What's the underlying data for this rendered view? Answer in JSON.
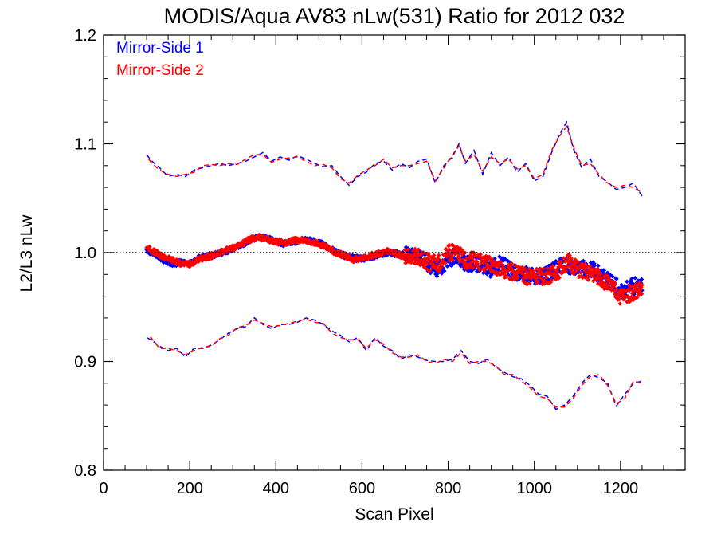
{
  "chart_data": {
    "type": "scatter",
    "title": "MODIS/Aqua AV83 nLw(531) Ratio for 2012 032",
    "xlabel": "Scan Pixel",
    "ylabel": "L2/L3 nLw",
    "xlim": [
      0,
      1350
    ],
    "ylim": [
      0.8,
      1.2
    ],
    "x_ticks": [
      0,
      200,
      400,
      600,
      800,
      1000,
      1200
    ],
    "x_tick_labels": [
      "0",
      "200",
      "400",
      "600",
      "800",
      "1000",
      "1200"
    ],
    "y_ticks": [
      0.8,
      0.9,
      1.0,
      1.1,
      1.2
    ],
    "y_tick_labels": [
      "0.8",
      "0.9",
      "1.0",
      "1.1",
      "1.2"
    ],
    "reference_line": 1.0,
    "legend_position": "top-left",
    "colors": {
      "ms1": "#0000ff",
      "ms2": "#ff0000",
      "reference": "#000000"
    },
    "series": [
      {
        "name": "Mirror-Side 1",
        "color": "#0000ff",
        "mean": {
          "x": [
            100,
            120,
            140,
            160,
            180,
            200,
            220,
            240,
            260,
            280,
            300,
            320,
            340,
            360,
            380,
            400,
            420,
            440,
            460,
            480,
            500,
            520,
            540,
            560,
            580,
            600,
            620,
            640,
            660,
            680,
            700,
            720,
            740,
            760,
            780,
            800,
            820,
            840,
            860,
            880,
            900,
            920,
            940,
            960,
            980,
            1000,
            1020,
            1040,
            1060,
            1080,
            1100,
            1120,
            1140,
            1160,
            1180,
            1200,
            1220,
            1240,
            1250
          ],
          "y": [
            1.003,
            0.998,
            0.993,
            0.99,
            0.991,
            0.99,
            0.995,
            0.997,
            0.998,
            1.001,
            1.003,
            1.007,
            1.012,
            1.015,
            1.013,
            1.01,
            1.008,
            1.01,
            1.012,
            1.011,
            1.009,
            1.005,
            1.001,
            0.997,
            0.995,
            0.994,
            0.996,
            0.998,
            1.0,
            0.999,
            0.998,
            0.996,
            0.995,
            0.987,
            0.985,
            0.995,
            0.997,
            0.99,
            0.99,
            0.988,
            0.985,
            0.99,
            0.985,
            0.982,
            0.98,
            0.978,
            0.978,
            0.982,
            0.988,
            0.988,
            0.987,
            0.986,
            0.983,
            0.978,
            0.973,
            0.965,
            0.968,
            0.97,
            0.968
          ]
        },
        "upper": {
          "x": [
            100,
            110,
            130,
            150,
            170,
            190,
            210,
            230,
            250,
            270,
            290,
            310,
            330,
            350,
            370,
            390,
            410,
            430,
            450,
            470,
            490,
            510,
            530,
            550,
            570,
            590,
            610,
            630,
            650,
            670,
            690,
            710,
            730,
            750,
            770,
            790,
            810,
            825,
            840,
            860,
            880,
            900,
            920,
            940,
            960,
            980,
            1000,
            1020,
            1040,
            1060,
            1075,
            1090,
            1110,
            1130,
            1150,
            1170,
            1190,
            1210,
            1230,
            1250
          ],
          "y": [
            1.09,
            1.085,
            1.078,
            1.07,
            1.072,
            1.07,
            1.076,
            1.078,
            1.08,
            1.082,
            1.08,
            1.082,
            1.084,
            1.088,
            1.092,
            1.084,
            1.088,
            1.085,
            1.089,
            1.086,
            1.082,
            1.079,
            1.08,
            1.07,
            1.062,
            1.07,
            1.074,
            1.082,
            1.084,
            1.076,
            1.082,
            1.078,
            1.084,
            1.086,
            1.064,
            1.08,
            1.088,
            1.1,
            1.082,
            1.094,
            1.072,
            1.092,
            1.08,
            1.088,
            1.074,
            1.082,
            1.066,
            1.07,
            1.092,
            1.11,
            1.12,
            1.096,
            1.078,
            1.086,
            1.07,
            1.065,
            1.058,
            1.06,
            1.064,
            1.052
          ]
        },
        "lower": {
          "x": [
            100,
            110,
            130,
            150,
            170,
            190,
            210,
            230,
            250,
            270,
            290,
            310,
            330,
            350,
            370,
            390,
            410,
            430,
            450,
            470,
            490,
            510,
            530,
            550,
            570,
            590,
            610,
            630,
            650,
            670,
            690,
            710,
            730,
            750,
            770,
            790,
            810,
            830,
            850,
            870,
            890,
            910,
            930,
            950,
            970,
            990,
            1010,
            1030,
            1050,
            1070,
            1090,
            1110,
            1130,
            1150,
            1170,
            1190,
            1210,
            1230,
            1250
          ],
          "y": [
            0.922,
            0.92,
            0.914,
            0.91,
            0.912,
            0.904,
            0.912,
            0.912,
            0.915,
            0.92,
            0.926,
            0.93,
            0.932,
            0.94,
            0.934,
            0.93,
            0.934,
            0.934,
            0.936,
            0.94,
            0.938,
            0.934,
            0.928,
            0.924,
            0.918,
            0.922,
            0.91,
            0.922,
            0.914,
            0.91,
            0.902,
            0.906,
            0.904,
            0.901,
            0.9,
            0.9,
            0.902,
            0.91,
            0.9,
            0.898,
            0.902,
            0.895,
            0.89,
            0.886,
            0.884,
            0.878,
            0.87,
            0.868,
            0.856,
            0.86,
            0.868,
            0.88,
            0.888,
            0.885,
            0.88,
            0.859,
            0.87,
            0.88,
            0.882
          ]
        }
      },
      {
        "name": "Mirror-Side 2",
        "color": "#ff0000",
        "mean": {
          "x": [
            100,
            120,
            140,
            160,
            180,
            200,
            220,
            240,
            260,
            280,
            300,
            320,
            340,
            360,
            380,
            400,
            420,
            440,
            460,
            480,
            500,
            520,
            540,
            560,
            580,
            600,
            620,
            640,
            660,
            680,
            700,
            720,
            740,
            760,
            780,
            800,
            820,
            840,
            860,
            880,
            900,
            920,
            940,
            960,
            980,
            1000,
            1020,
            1040,
            1060,
            1080,
            1100,
            1120,
            1140,
            1160,
            1180,
            1200,
            1220,
            1240,
            1250
          ],
          "y": [
            1.005,
            1.0,
            0.996,
            0.993,
            0.99,
            0.989,
            0.994,
            0.996,
            0.998,
            1.002,
            1.004,
            1.008,
            1.012,
            1.014,
            1.012,
            1.01,
            1.009,
            1.011,
            1.012,
            1.01,
            1.008,
            1.004,
            1.0,
            0.997,
            0.994,
            0.995,
            0.997,
            0.999,
            1.001,
            0.999,
            0.996,
            0.997,
            0.994,
            0.99,
            0.99,
            1.0,
            1.0,
            0.992,
            0.993,
            0.99,
            0.99,
            0.985,
            0.983,
            0.982,
            0.978,
            0.98,
            0.978,
            0.98,
            0.985,
            0.992,
            0.985,
            0.982,
            0.98,
            0.975,
            0.968,
            0.96,
            0.962,
            0.966,
            0.966
          ]
        },
        "upper": {
          "x": [
            100,
            110,
            130,
            150,
            170,
            190,
            210,
            230,
            250,
            270,
            290,
            310,
            330,
            350,
            370,
            390,
            410,
            430,
            450,
            470,
            490,
            510,
            530,
            550,
            570,
            590,
            610,
            630,
            650,
            670,
            690,
            710,
            730,
            750,
            770,
            790,
            810,
            825,
            840,
            860,
            880,
            900,
            920,
            940,
            960,
            980,
            1000,
            1020,
            1040,
            1060,
            1075,
            1090,
            1110,
            1130,
            1150,
            1170,
            1190,
            1210,
            1230,
            1250
          ],
          "y": [
            1.089,
            1.083,
            1.076,
            1.072,
            1.07,
            1.072,
            1.074,
            1.08,
            1.081,
            1.08,
            1.082,
            1.081,
            1.086,
            1.09,
            1.09,
            1.083,
            1.086,
            1.087,
            1.088,
            1.084,
            1.08,
            1.081,
            1.078,
            1.068,
            1.064,
            1.071,
            1.076,
            1.08,
            1.086,
            1.078,
            1.08,
            1.08,
            1.082,
            1.084,
            1.066,
            1.078,
            1.09,
            1.098,
            1.084,
            1.09,
            1.075,
            1.088,
            1.082,
            1.086,
            1.077,
            1.08,
            1.068,
            1.072,
            1.094,
            1.108,
            1.116,
            1.098,
            1.08,
            1.082,
            1.072,
            1.064,
            1.06,
            1.062,
            1.06,
            1.055
          ]
        },
        "lower": {
          "x": [
            100,
            110,
            130,
            150,
            170,
            190,
            210,
            230,
            250,
            270,
            290,
            310,
            330,
            350,
            370,
            390,
            410,
            430,
            450,
            470,
            490,
            510,
            530,
            550,
            570,
            590,
            610,
            630,
            650,
            670,
            690,
            710,
            730,
            750,
            770,
            790,
            810,
            830,
            850,
            870,
            890,
            910,
            930,
            950,
            970,
            990,
            1010,
            1030,
            1050,
            1070,
            1090,
            1110,
            1130,
            1150,
            1170,
            1190,
            1210,
            1230,
            1250
          ],
          "y": [
            0.92,
            0.922,
            0.912,
            0.912,
            0.91,
            0.906,
            0.91,
            0.913,
            0.914,
            0.921,
            0.924,
            0.931,
            0.933,
            0.938,
            0.935,
            0.932,
            0.933,
            0.935,
            0.937,
            0.939,
            0.936,
            0.935,
            0.926,
            0.922,
            0.92,
            0.92,
            0.912,
            0.92,
            0.916,
            0.908,
            0.904,
            0.904,
            0.906,
            0.9,
            0.898,
            0.902,
            0.9,
            0.908,
            0.898,
            0.9,
            0.9,
            0.896,
            0.888,
            0.888,
            0.882,
            0.876,
            0.868,
            0.866,
            0.858,
            0.858,
            0.866,
            0.878,
            0.886,
            0.888,
            0.878,
            0.861,
            0.866,
            0.882,
            0.88
          ]
        }
      }
    ],
    "legend": [
      {
        "label": "Mirror-Side 1",
        "color": "#0000ff"
      },
      {
        "label": "Mirror-Side 2",
        "color": "#ff0000"
      }
    ]
  }
}
